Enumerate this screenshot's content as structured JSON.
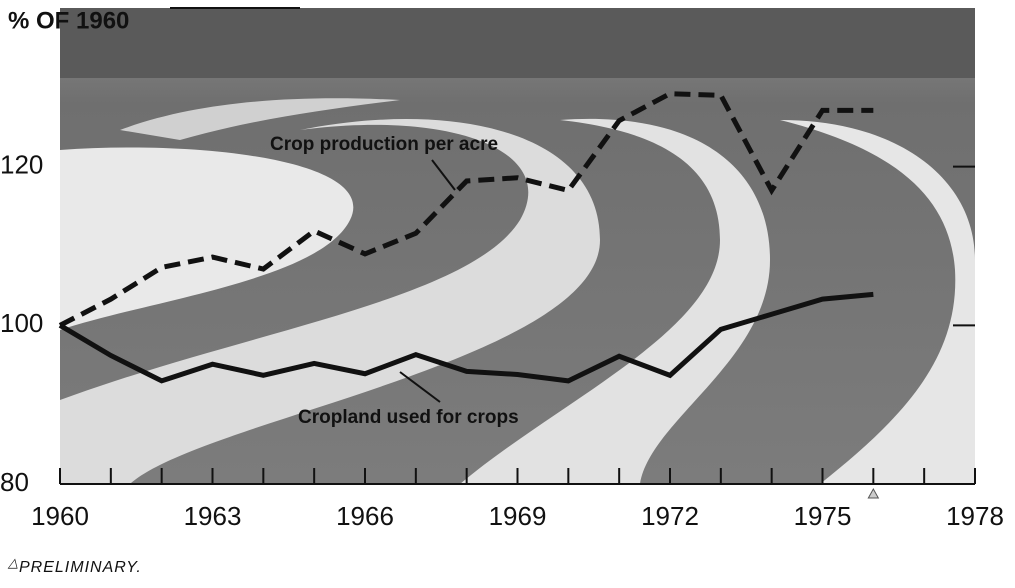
{
  "chart_data": {
    "type": "line",
    "y_label": "% OF 1960",
    "x": [
      1960,
      1961,
      1962,
      1963,
      1964,
      1965,
      1966,
      1967,
      1968,
      1969,
      1970,
      1971,
      1972,
      1973,
      1974,
      1975,
      1976
    ],
    "series": [
      {
        "name": "Crop production per acre",
        "color": "#111111",
        "dashed": true,
        "values": [
          100,
          103.3,
          107.3,
          108.6,
          107.1,
          111.9,
          109,
          111.6,
          118.2,
          118.6,
          117,
          125.8,
          129.2,
          129,
          117,
          127.1,
          127.1
        ]
      },
      {
        "name": "Cropland used for crops",
        "color": "#111111",
        "dashed": false,
        "values": [
          100,
          96.2,
          93,
          95.1,
          93.7,
          95.2,
          93.9,
          96.3,
          94.2,
          93.8,
          93,
          96.1,
          93.7,
          99.5,
          101.4,
          103.3,
          103.9
        ]
      }
    ],
    "xlim": [
      1960,
      1978
    ],
    "xticks": [
      1960,
      1963,
      1966,
      1969,
      1972,
      1975,
      1978
    ],
    "x_minor_ticks": [
      1961,
      1962,
      1964,
      1965,
      1967,
      1968,
      1970,
      1971,
      1973,
      1974,
      1976,
      1977
    ],
    "ylim": [
      80,
      140
    ],
    "yticks": [
      80,
      100,
      120
    ],
    "footnote": {
      "x": 1976,
      "text": "PRELIMINARY."
    }
  }
}
